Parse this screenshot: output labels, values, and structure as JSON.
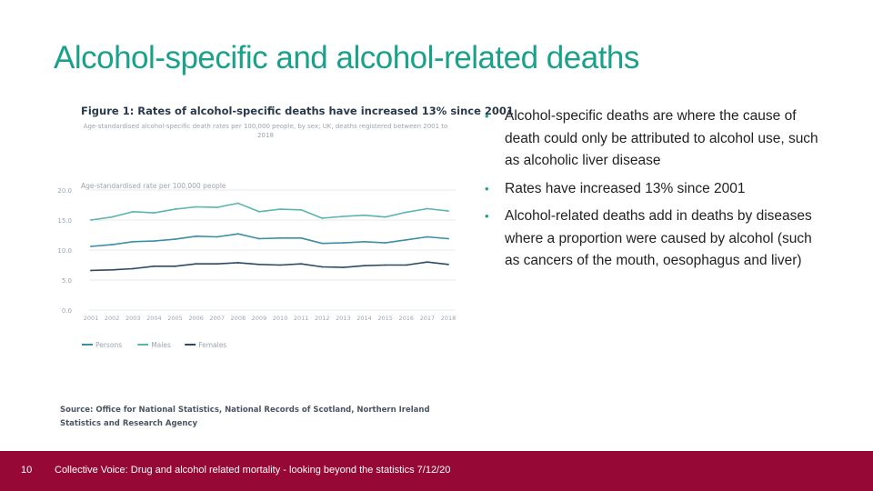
{
  "slide": {
    "title": "Alcohol-specific and alcohol-related deaths",
    "bullets": [
      "Alcohol-specific deaths are where the cause of death could only be attributed to alcohol use, such as alcoholic liver disease",
      "Rates have increased 13% since 2001",
      "Alcohol-related deaths add in deaths by diseases where a proportion were caused by alcohol (such as cancers of the mouth, oesophagus and liver)"
    ],
    "source": "Source: Office for National Statistics, National Records of Scotland, Northern Ireland Statistics and Research Agency"
  },
  "footer": {
    "page_number": "10",
    "text": "Collective Voice: Drug and alcohol related mortality - looking beyond the statistics 7/12/20",
    "background": "#960836"
  },
  "chart_data": {
    "type": "line",
    "title": "Figure 1: Rates of alcohol-specific deaths have increased 13% since 2001",
    "subtitle": "Age-standardised alcohol-specific death rates per 100,000 people, by sex; UK, deaths registered between 2001 to 2018",
    "ylabel": "Age-standardised rate per 100,000 people",
    "xlabel": "",
    "ylim": [
      0,
      20
    ],
    "yticks": [
      "0.0",
      "5.0",
      "10.0",
      "15.0",
      "20.0"
    ],
    "grid": true,
    "legend_position": "bottom-left",
    "categories": [
      "2001",
      "2002",
      "2003",
      "2004",
      "2005",
      "2006",
      "2007",
      "2008",
      "2009",
      "2010",
      "2011",
      "2012",
      "2013",
      "2014",
      "2015",
      "2016",
      "2017",
      "2018"
    ],
    "series": [
      {
        "name": "Persons",
        "color": "#3a8fa6",
        "values": [
          10.6,
          10.9,
          11.4,
          11.5,
          11.8,
          12.3,
          12.2,
          12.7,
          11.9,
          12.0,
          12.0,
          11.1,
          11.2,
          11.4,
          11.2,
          11.7,
          12.2,
          11.9
        ]
      },
      {
        "name": "Males",
        "color": "#5bb5b0",
        "values": [
          15.0,
          15.5,
          16.4,
          16.2,
          16.8,
          17.2,
          17.1,
          17.8,
          16.4,
          16.8,
          16.7,
          15.3,
          15.6,
          15.8,
          15.5,
          16.3,
          16.9,
          16.5
        ]
      },
      {
        "name": "Females",
        "color": "#2e4a63",
        "values": [
          6.6,
          6.7,
          6.9,
          7.3,
          7.3,
          7.7,
          7.7,
          7.9,
          7.6,
          7.5,
          7.7,
          7.2,
          7.1,
          7.4,
          7.5,
          7.5,
          8.0,
          7.6
        ]
      }
    ]
  }
}
